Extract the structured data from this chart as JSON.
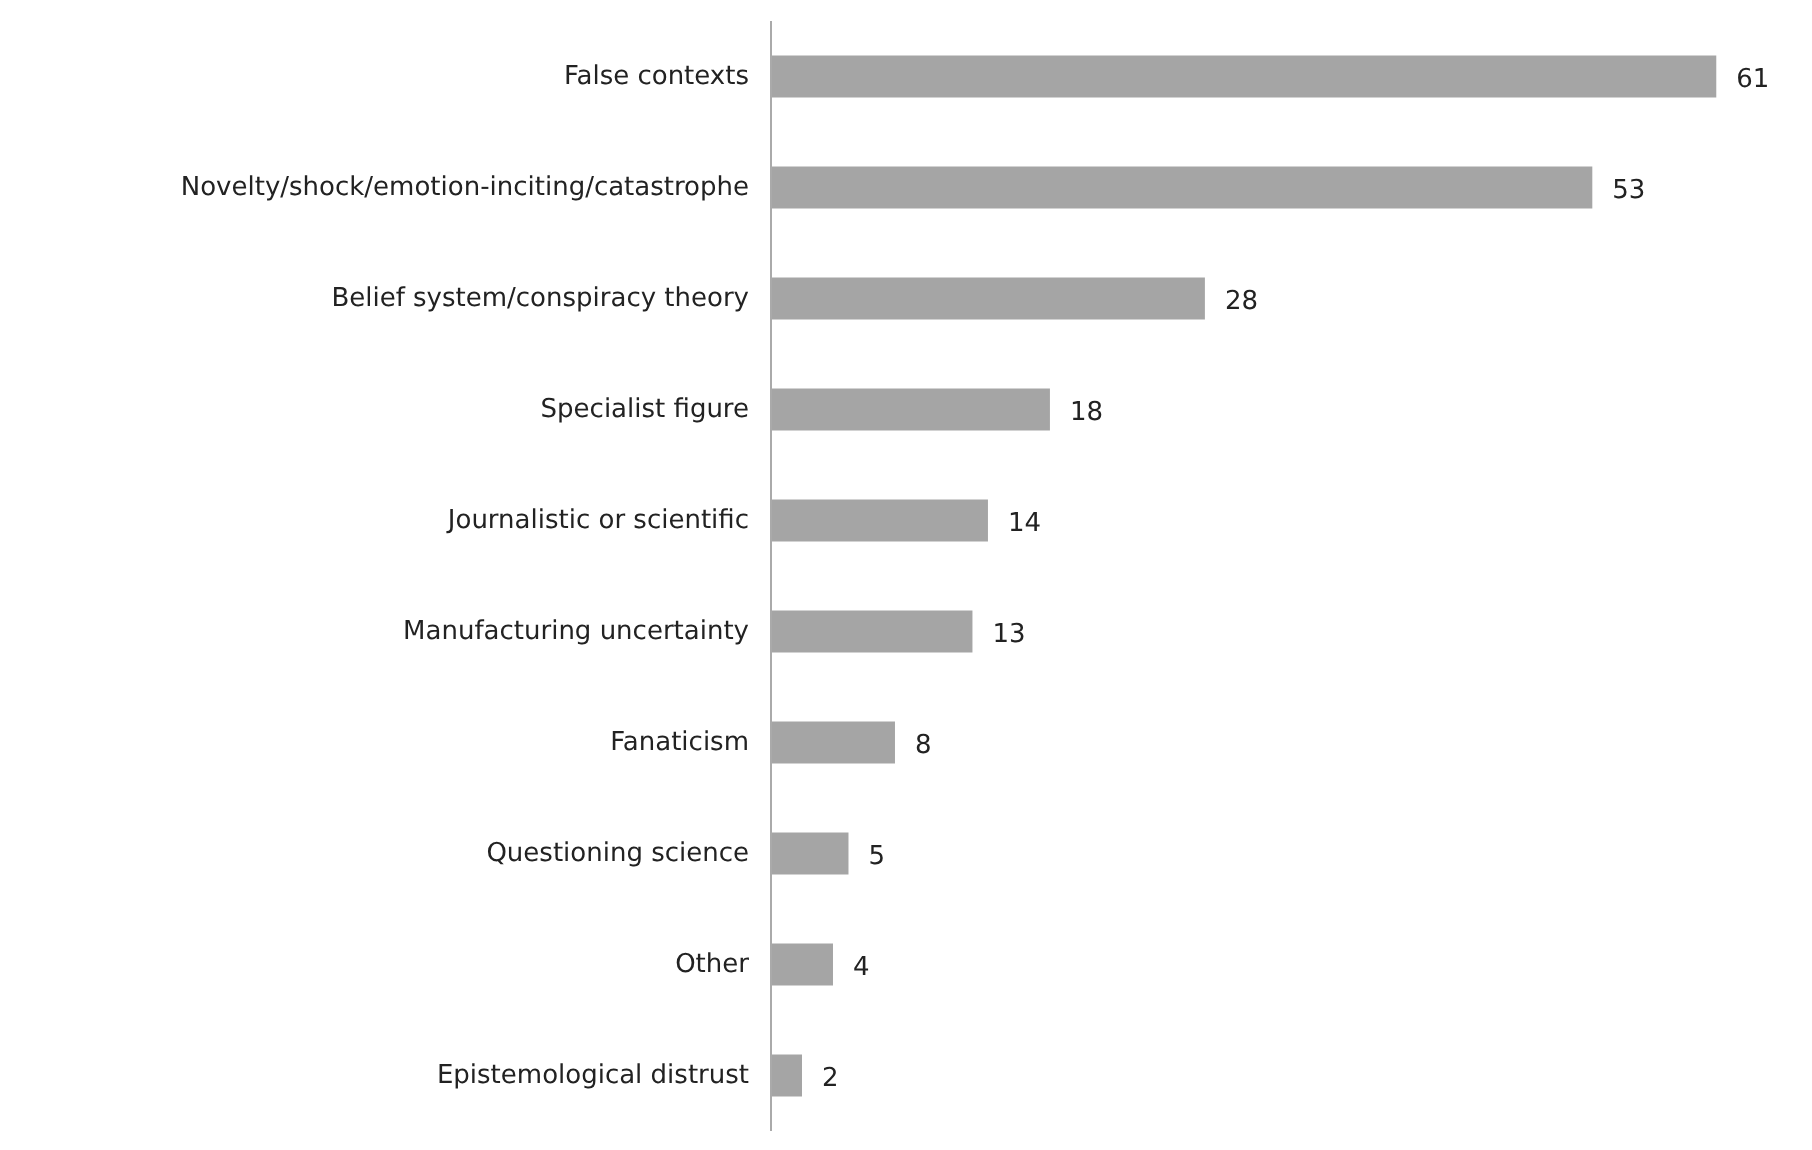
{
  "chart_data": {
    "type": "bar",
    "orientation": "horizontal",
    "categories": [
      "False contexts",
      "Novelty/shock/emotion-inciting/catastrophe",
      "Belief system/conspiracy theory",
      "Specialist figure",
      "Journalistic or scientific",
      "Manufacturing uncertainty",
      "Fanaticism",
      "Questioning science",
      "Other",
      "Epistemological distrust"
    ],
    "values": [
      61,
      53,
      28,
      18,
      14,
      13,
      8,
      5,
      4,
      2
    ],
    "color": "#a5a5a5",
    "data_labels": true
  }
}
